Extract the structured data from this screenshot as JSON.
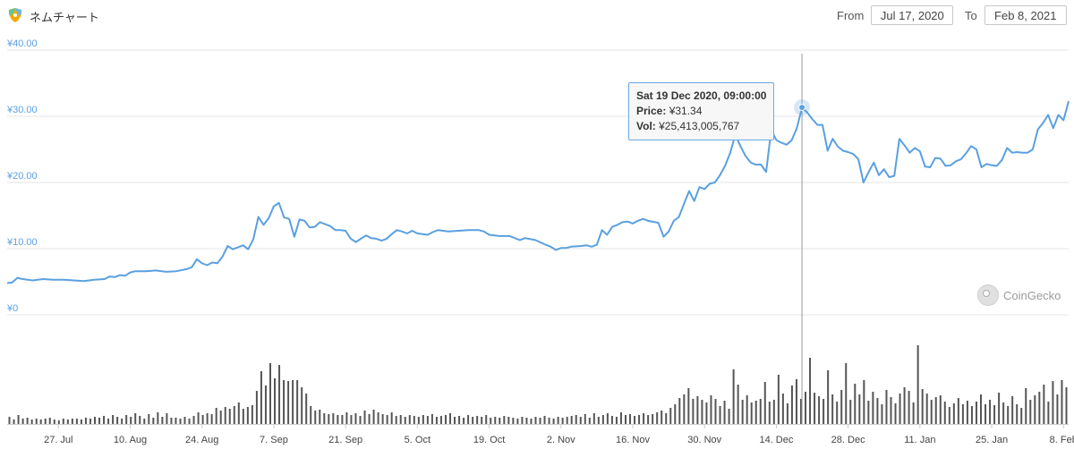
{
  "header": {
    "title": "ネムチャート",
    "logo_icon": "nem-logo-icon",
    "from_label": "From",
    "from_value": "Jul 17, 2020",
    "to_label": "To",
    "to_value": "Feb 8, 2021"
  },
  "tooltip": {
    "date": "Sat 19 Dec 2020, 09:00:00",
    "price_label": "Price:",
    "price_value": "¥31.34",
    "vol_label": "Vol:",
    "vol_value": "¥25,413,005,767"
  },
  "watermark": {
    "text": "CoinGecko",
    "icon": "coingecko-icon"
  },
  "colors": {
    "line": "#5aa0e0",
    "volume": "#555555",
    "grid": "#e6e6e6",
    "crosshair": "#999999"
  },
  "chart_data": [
    {
      "type": "line",
      "ylabel": "",
      "yticks": [
        "¥0",
        "¥10.00",
        "¥20.00",
        "¥30.00",
        "¥40.00"
      ],
      "ylim": [
        0,
        40
      ],
      "xlim": [
        "2020-07-17",
        "2021-02-09"
      ],
      "xticks": [
        {
          "date": "2020-07-27",
          "label": "27. Jul"
        },
        {
          "date": "2020-08-10",
          "label": "10. Aug"
        },
        {
          "date": "2020-08-24",
          "label": "24. Aug"
        },
        {
          "date": "2020-09-07",
          "label": "7. Sep"
        },
        {
          "date": "2020-09-21",
          "label": "21. Sep"
        },
        {
          "date": "2020-10-05",
          "label": "5. Oct"
        },
        {
          "date": "2020-10-19",
          "label": "19. Oct"
        },
        {
          "date": "2020-11-02",
          "label": "2. Nov"
        },
        {
          "date": "2020-11-16",
          "label": "16. Nov"
        },
        {
          "date": "2020-11-30",
          "label": "30. Nov"
        },
        {
          "date": "2020-12-14",
          "label": "14. Dec"
        },
        {
          "date": "2020-12-28",
          "label": "28. Dec"
        },
        {
          "date": "2021-01-11",
          "label": "11. Jan"
        },
        {
          "date": "2021-01-25",
          "label": "25. Jan"
        },
        {
          "date": "2021-02-08",
          "label": "8. Feb"
        }
      ],
      "highlight": {
        "date": "2020-12-19",
        "value": 31.34
      },
      "series": [
        {
          "points": [
            [
              "2020-07-17",
              4.8
            ],
            [
              "2020-07-18",
              4.9
            ],
            [
              "2020-07-19",
              5.6
            ],
            [
              "2020-07-20",
              5.4
            ],
            [
              "2020-07-22",
              5.2
            ],
            [
              "2020-07-24",
              5.4
            ],
            [
              "2020-07-26",
              5.3
            ],
            [
              "2020-07-28",
              5.3
            ],
            [
              "2020-07-30",
              5.2
            ],
            [
              "2020-08-01",
              5.1
            ],
            [
              "2020-08-03",
              5.3
            ],
            [
              "2020-08-05",
              5.4
            ],
            [
              "2020-08-06",
              5.8
            ],
            [
              "2020-08-07",
              5.7
            ],
            [
              "2020-08-08",
              6.0
            ],
            [
              "2020-08-09",
              5.9
            ],
            [
              "2020-08-10",
              6.4
            ],
            [
              "2020-08-11",
              6.6
            ],
            [
              "2020-08-13",
              6.6
            ],
            [
              "2020-08-15",
              6.7
            ],
            [
              "2020-08-17",
              6.5
            ],
            [
              "2020-08-19",
              6.6
            ],
            [
              "2020-08-21",
              6.9
            ],
            [
              "2020-08-22",
              7.2
            ],
            [
              "2020-08-23",
              8.4
            ],
            [
              "2020-08-24",
              7.8
            ],
            [
              "2020-08-25",
              7.5
            ],
            [
              "2020-08-26",
              7.9
            ],
            [
              "2020-08-27",
              7.8
            ],
            [
              "2020-08-28",
              8.8
            ],
            [
              "2020-08-29",
              10.4
            ],
            [
              "2020-08-30",
              9.9
            ],
            [
              "2020-08-31",
              10.2
            ],
            [
              "2020-09-01",
              10.5
            ],
            [
              "2020-09-02",
              9.9
            ],
            [
              "2020-09-03",
              11.4
            ],
            [
              "2020-09-04",
              14.8
            ],
            [
              "2020-09-05",
              13.6
            ],
            [
              "2020-09-06",
              14.6
            ],
            [
              "2020-09-07",
              16.4
            ],
            [
              "2020-09-08",
              16.9
            ],
            [
              "2020-09-09",
              14.7
            ],
            [
              "2020-09-10",
              14.5
            ],
            [
              "2020-09-11",
              11.8
            ],
            [
              "2020-09-12",
              14.4
            ],
            [
              "2020-09-13",
              14.2
            ],
            [
              "2020-09-14",
              13.2
            ],
            [
              "2020-09-15",
              13.3
            ],
            [
              "2020-09-16",
              14.0
            ],
            [
              "2020-09-17",
              13.7
            ],
            [
              "2020-09-18",
              13.4
            ],
            [
              "2020-09-19",
              12.8
            ],
            [
              "2020-09-20",
              12.8
            ],
            [
              "2020-09-21",
              12.7
            ],
            [
              "2020-09-22",
              11.5
            ],
            [
              "2020-09-23",
              11.0
            ],
            [
              "2020-09-24",
              11.5
            ],
            [
              "2020-09-25",
              12.0
            ],
            [
              "2020-09-26",
              11.6
            ],
            [
              "2020-09-27",
              11.5
            ],
            [
              "2020-09-28",
              11.2
            ],
            [
              "2020-09-29",
              11.5
            ],
            [
              "2020-09-30",
              12.2
            ],
            [
              "2020-10-01",
              12.8
            ],
            [
              "2020-10-02",
              12.6
            ],
            [
              "2020-10-03",
              12.3
            ],
            [
              "2020-10-04",
              12.7
            ],
            [
              "2020-10-05",
              12.3
            ],
            [
              "2020-10-07",
              12.1
            ],
            [
              "2020-10-08",
              12.5
            ],
            [
              "2020-10-09",
              12.8
            ],
            [
              "2020-10-11",
              12.6
            ],
            [
              "2020-10-13",
              12.7
            ],
            [
              "2020-10-15",
              12.8
            ],
            [
              "2020-10-17",
              12.8
            ],
            [
              "2020-10-18",
              12.6
            ],
            [
              "2020-10-19",
              12.1
            ],
            [
              "2020-10-21",
              11.9
            ],
            [
              "2020-10-23",
              11.9
            ],
            [
              "2020-10-24",
              11.6
            ],
            [
              "2020-10-25",
              11.3
            ],
            [
              "2020-10-26",
              11.6
            ],
            [
              "2020-10-28",
              11.3
            ],
            [
              "2020-10-30",
              10.6
            ],
            [
              "2020-10-31",
              10.3
            ],
            [
              "2020-11-01",
              9.8
            ],
            [
              "2020-11-02",
              10.1
            ],
            [
              "2020-11-03",
              10.1
            ],
            [
              "2020-11-04",
              10.3
            ],
            [
              "2020-11-06",
              10.4
            ],
            [
              "2020-11-07",
              10.5
            ],
            [
              "2020-11-08",
              10.3
            ],
            [
              "2020-11-09",
              10.6
            ],
            [
              "2020-11-10",
              12.8
            ],
            [
              "2020-11-11",
              12.1
            ],
            [
              "2020-11-12",
              13.3
            ],
            [
              "2020-11-13",
              13.6
            ],
            [
              "2020-11-14",
              14.0
            ],
            [
              "2020-11-15",
              14.1
            ],
            [
              "2020-11-16",
              13.8
            ],
            [
              "2020-11-17",
              14.2
            ],
            [
              "2020-11-18",
              14.5
            ],
            [
              "2020-11-19",
              14.2
            ],
            [
              "2020-11-21",
              13.9
            ],
            [
              "2020-11-22",
              11.8
            ],
            [
              "2020-11-23",
              12.6
            ],
            [
              "2020-11-24",
              14.2
            ],
            [
              "2020-11-25",
              14.8
            ],
            [
              "2020-11-26",
              16.8
            ],
            [
              "2020-11-27",
              18.7
            ],
            [
              "2020-11-28",
              17.2
            ],
            [
              "2020-11-29",
              19.3
            ],
            [
              "2020-11-30",
              19.0
            ],
            [
              "2020-12-01",
              19.8
            ],
            [
              "2020-12-02",
              20.0
            ],
            [
              "2020-12-03",
              21.1
            ],
            [
              "2020-12-04",
              22.5
            ],
            [
              "2020-12-05",
              24.5
            ],
            [
              "2020-12-06",
              27.2
            ],
            [
              "2020-12-07",
              25.5
            ],
            [
              "2020-12-08",
              24.0
            ],
            [
              "2020-12-09",
              23.0
            ],
            [
              "2020-12-10",
              22.7
            ],
            [
              "2020-12-11",
              22.7
            ],
            [
              "2020-12-12",
              21.6
            ],
            [
              "2020-12-13",
              27.9
            ],
            [
              "2020-12-14",
              26.4
            ],
            [
              "2020-12-15",
              26.0
            ],
            [
              "2020-12-16",
              25.7
            ],
            [
              "2020-12-17",
              26.4
            ],
            [
              "2020-12-18",
              28.2
            ],
            [
              "2020-12-19",
              31.3
            ],
            [
              "2020-12-20",
              30.6
            ],
            [
              "2020-12-21",
              29.6
            ],
            [
              "2020-12-22",
              28.7
            ],
            [
              "2020-12-23",
              28.7
            ],
            [
              "2020-12-24",
              24.8
            ],
            [
              "2020-12-25",
              26.6
            ],
            [
              "2020-12-26",
              25.4
            ],
            [
              "2020-12-27",
              24.8
            ],
            [
              "2020-12-28",
              24.6
            ],
            [
              "2020-12-29",
              24.3
            ],
            [
              "2020-12-30",
              23.5
            ],
            [
              "2020-12-31",
              20.0
            ],
            [
              "2021-01-01",
              21.6
            ],
            [
              "2021-01-02",
              23.0
            ],
            [
              "2021-01-03",
              21.1
            ],
            [
              "2021-01-04",
              22.0
            ],
            [
              "2021-01-05",
              20.8
            ],
            [
              "2021-01-06",
              21.0
            ],
            [
              "2021-01-07",
              26.6
            ],
            [
              "2021-01-08",
              25.6
            ],
            [
              "2021-01-09",
              24.5
            ],
            [
              "2021-01-10",
              25.2
            ],
            [
              "2021-01-11",
              24.7
            ],
            [
              "2021-01-12",
              22.4
            ],
            [
              "2021-01-13",
              22.3
            ],
            [
              "2021-01-14",
              23.7
            ],
            [
              "2021-01-15",
              23.6
            ],
            [
              "2021-01-16",
              22.5
            ],
            [
              "2021-01-17",
              22.6
            ],
            [
              "2021-01-18",
              23.2
            ],
            [
              "2021-01-19",
              23.5
            ],
            [
              "2021-01-20",
              24.4
            ],
            [
              "2021-01-21",
              25.5
            ],
            [
              "2021-01-22",
              25.0
            ],
            [
              "2021-01-23",
              22.3
            ],
            [
              "2021-01-24",
              22.8
            ],
            [
              "2021-01-25",
              22.6
            ],
            [
              "2021-01-26",
              22.5
            ],
            [
              "2021-01-27",
              23.4
            ],
            [
              "2021-01-28",
              25.2
            ],
            [
              "2021-01-29",
              24.5
            ],
            [
              "2021-01-30",
              24.6
            ],
            [
              "2021-01-31",
              24.5
            ],
            [
              "2021-02-01",
              24.5
            ],
            [
              "2021-02-02",
              25.0
            ],
            [
              "2021-02-03",
              28.0
            ],
            [
              "2021-02-04",
              29.0
            ],
            [
              "2021-02-05",
              30.2
            ],
            [
              "2021-02-06",
              28.2
            ],
            [
              "2021-02-07",
              30.2
            ],
            [
              "2021-02-08",
              29.4
            ],
            [
              "2021-02-09",
              32.3
            ]
          ]
        }
      ]
    },
    {
      "type": "bar",
      "xlim": [
        "2020-07-17",
        "2021-02-09"
      ],
      "volume_relative": [
        0.08,
        0.05,
        0.1,
        0.06,
        0.07,
        0.05,
        0.06,
        0.05,
        0.06,
        0.07,
        0.05,
        0.04,
        0.06,
        0.05,
        0.06,
        0.06,
        0.05,
        0.07,
        0.06,
        0.08,
        0.07,
        0.09,
        0.06,
        0.1,
        0.08,
        0.06,
        0.1,
        0.08,
        0.12,
        0.09,
        0.06,
        0.11,
        0.07,
        0.13,
        0.08,
        0.12,
        0.07,
        0.07,
        0.06,
        0.08,
        0.06,
        0.09,
        0.13,
        0.1,
        0.12,
        0.11,
        0.18,
        0.15,
        0.19,
        0.17,
        0.2,
        0.24,
        0.17,
        0.19,
        0.21,
        0.37,
        0.59,
        0.43,
        0.68,
        0.51,
        0.66,
        0.49,
        0.48,
        0.49,
        0.49,
        0.41,
        0.34,
        0.2,
        0.15,
        0.16,
        0.12,
        0.11,
        0.12,
        0.1,
        0.1,
        0.13,
        0.1,
        0.12,
        0.09,
        0.15,
        0.11,
        0.16,
        0.13,
        0.11,
        0.1,
        0.13,
        0.09,
        0.1,
        0.08,
        0.1,
        0.09,
        0.08,
        0.1,
        0.09,
        0.11,
        0.08,
        0.09,
        0.1,
        0.12,
        0.08,
        0.09,
        0.07,
        0.1,
        0.08,
        0.09,
        0.08,
        0.1,
        0.07,
        0.08,
        0.07,
        0.09,
        0.08,
        0.07,
        0.06,
        0.08,
        0.07,
        0.06,
        0.08,
        0.07,
        0.09,
        0.07,
        0.06,
        0.08,
        0.07,
        0.08,
        0.09,
        0.1,
        0.08,
        0.11,
        0.07,
        0.12,
        0.08,
        0.1,
        0.12,
        0.09,
        0.08,
        0.13,
        0.1,
        0.11,
        0.09,
        0.1,
        0.12,
        0.1,
        0.11,
        0.13,
        0.15,
        0.12,
        0.18,
        0.22,
        0.29,
        0.33,
        0.4,
        0.28,
        0.31,
        0.27,
        0.24,
        0.32,
        0.28,
        0.2,
        0.26,
        0.17,
        0.61,
        0.44,
        0.27,
        0.32,
        0.24,
        0.26,
        0.28,
        0.47,
        0.25,
        0.27,
        0.55,
        0.34,
        0.23,
        0.43,
        0.5,
        0.28,
        0.36,
        0.74,
        0.35,
        0.31,
        0.28,
        0.6,
        0.33,
        0.25,
        0.38,
        0.68,
        0.27,
        0.45,
        0.33,
        0.49,
        0.26,
        0.36,
        0.29,
        0.22,
        0.38,
        0.3,
        0.23,
        0.34,
        0.41,
        0.37,
        0.24,
        0.88,
        0.39,
        0.34,
        0.27,
        0.3,
        0.32,
        0.25,
        0.19,
        0.23,
        0.29,
        0.22,
        0.26,
        0.2,
        0.25,
        0.33,
        0.22,
        0.27,
        0.21,
        0.35,
        0.24,
        0.2,
        0.31,
        0.22,
        0.18,
        0.4,
        0.27,
        0.32,
        0.36,
        0.44,
        0.25,
        0.48,
        0.33,
        0.49,
        0.41
      ]
    }
  ]
}
